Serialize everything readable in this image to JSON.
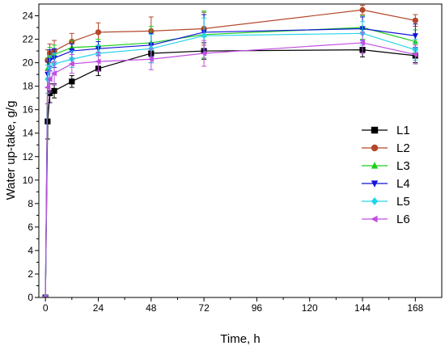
{
  "chart_data": {
    "type": "line",
    "xlabel": "Time, h",
    "ylabel": "Water up-take, g/g",
    "xlim": [
      -3,
      180
    ],
    "ylim": [
      0,
      25
    ],
    "xticks": [
      0,
      24,
      48,
      72,
      96,
      120,
      144,
      168
    ],
    "yticks": [
      0,
      2,
      4,
      6,
      8,
      10,
      12,
      14,
      16,
      18,
      20,
      22,
      24
    ],
    "legend_position": "right",
    "grid": false,
    "series": [
      {
        "name": "L1",
        "color": "#000000",
        "marker": "square",
        "x": [
          0,
          1,
          2,
          4,
          12,
          24,
          48,
          72,
          144,
          168
        ],
        "y": [
          0,
          15.0,
          17.4,
          17.6,
          18.4,
          19.5,
          20.8,
          21.0,
          21.1,
          20.6
        ],
        "err": [
          0,
          1.5,
          0.8,
          0.6,
          0.5,
          0.6,
          0.8,
          0.7,
          0.6,
          0.6
        ]
      },
      {
        "name": "L2",
        "color": "#b4472b",
        "marker": "circle",
        "x": [
          0,
          1,
          2,
          4,
          12,
          24,
          48,
          72,
          144,
          168
        ],
        "y": [
          0,
          20.2,
          20.8,
          21.0,
          21.8,
          22.6,
          22.7,
          22.9,
          24.5,
          23.6
        ],
        "err": [
          0,
          0.9,
          0.8,
          0.9,
          0.7,
          0.8,
          1.2,
          1.4,
          0.4,
          0.5
        ]
      },
      {
        "name": "L3",
        "color": "#1fce1f",
        "marker": "triangle-up",
        "x": [
          0,
          1,
          2,
          4,
          12,
          24,
          48,
          72,
          144,
          168
        ],
        "y": [
          0,
          19.5,
          20.5,
          20.7,
          21.3,
          21.4,
          21.7,
          22.4,
          23.0,
          21.8
        ],
        "err": [
          0,
          0.9,
          0.8,
          0.8,
          0.6,
          0.6,
          1.4,
          2.0,
          1.0,
          1.0
        ]
      },
      {
        "name": "L4",
        "color": "#1212d8",
        "marker": "triangle-down",
        "x": [
          0,
          1,
          2,
          4,
          12,
          24,
          48,
          72,
          144,
          168
        ],
        "y": [
          0,
          19.0,
          20.2,
          20.4,
          21.0,
          21.2,
          21.5,
          22.6,
          22.9,
          22.3
        ],
        "err": [
          0,
          1.1,
          0.9,
          0.8,
          0.6,
          0.6,
          1.0,
          1.5,
          1.0,
          1.0
        ]
      },
      {
        "name": "L5",
        "color": "#27d3ea",
        "marker": "diamond",
        "x": [
          0,
          1,
          2,
          4,
          12,
          24,
          48,
          72,
          144,
          168
        ],
        "y": [
          0,
          18.6,
          19.6,
          19.9,
          20.3,
          20.8,
          21.2,
          22.3,
          22.5,
          21.1
        ],
        "err": [
          0,
          1.2,
          1.0,
          0.9,
          0.7,
          0.7,
          1.2,
          1.5,
          1.0,
          0.9
        ]
      },
      {
        "name": "L6",
        "color": "#c04fe0",
        "marker": "triangle-left",
        "x": [
          0,
          1,
          2,
          4,
          12,
          24,
          48,
          72,
          144,
          168
        ],
        "y": [
          0,
          17.9,
          18.6,
          19.1,
          19.9,
          20.1,
          20.3,
          20.8,
          21.7,
          20.7
        ],
        "err": [
          0,
          1.4,
          1.1,
          1.0,
          0.8,
          0.8,
          0.9,
          1.1,
          0.9,
          0.8
        ]
      }
    ]
  }
}
